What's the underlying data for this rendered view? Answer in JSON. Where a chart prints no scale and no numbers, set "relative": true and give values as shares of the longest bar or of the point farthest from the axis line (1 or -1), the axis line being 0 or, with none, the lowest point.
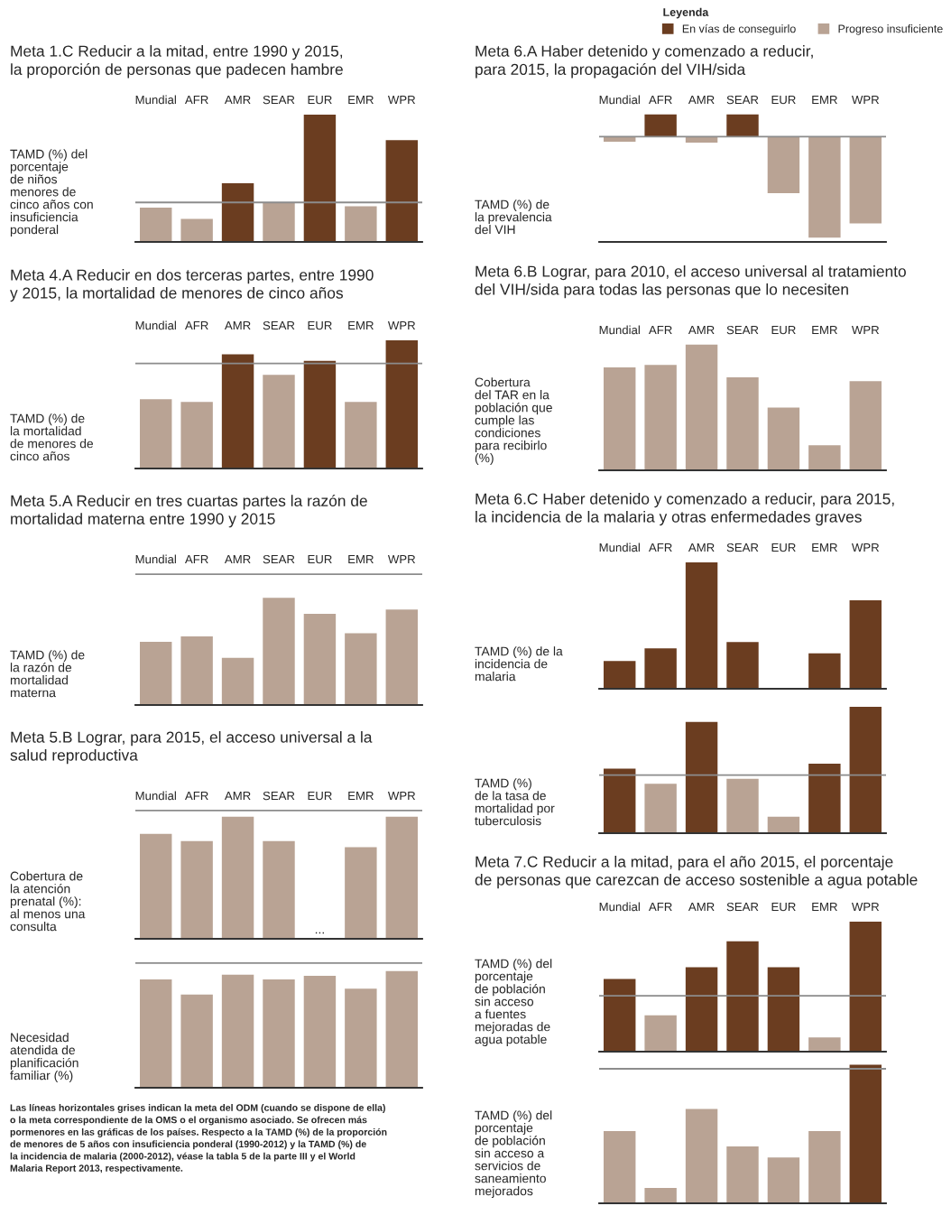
{
  "chart_data": [
    {
      "type": "bar",
      "relative": true,
      "title": "Meta 1.C Reducir a la mitad, entre 1990 y 2015,\nla proporción de personas que padecen hambre",
      "ylabel": "TAMD (%) del\nporcentaje\nde niños\nmenores de\ncinco años con\ninsuficiencia\nponderal",
      "categories": [
        "Mundial",
        "AFR",
        "AMR",
        "SEAR",
        "EUR",
        "EMR",
        "WPR"
      ],
      "series": [
        {
          "color": "#6b3d20",
          "values": [
            null,
            null,
            0.46,
            null,
            1,
            null,
            0.8
          ]
        },
        {
          "color": "#b9a394",
          "values": [
            0.27,
            0.18,
            null,
            0.31,
            null,
            0.28,
            null
          ]
        }
      ],
      "ref_lines": [
        {
          "axis": "y",
          "value": 0.31,
          "color": "#8c8c8c"
        }
      ]
    },
    {
      "type": "bar",
      "relative": true,
      "title": "Meta 4.A Reducir en dos terceras partes, entre 1990\ny 2015, la mortalidad de menores de cinco años",
      "ylabel": "TAMD (%) de\nla mortalidad\nde menores de\ncinco años",
      "categories": [
        "Mundial",
        "AFR",
        "AMR",
        "SEAR",
        "EUR",
        "EMR",
        "WPR"
      ],
      "series": [
        {
          "color": "#6b3d20",
          "values": [
            null,
            null,
            0.89,
            null,
            0.84,
            null,
            1
          ]
        },
        {
          "color": "#b9a394",
          "values": [
            0.54,
            0.52,
            null,
            0.73,
            null,
            0.52,
            null
          ]
        }
      ],
      "ref_lines": [
        {
          "axis": "y",
          "value": 0.82,
          "color": "#8c8c8c"
        }
      ]
    },
    {
      "type": "bar",
      "relative": true,
      "title": "Meta 5.A Reducir en tres cuartas partes la razón de\nmortalidad materna entre 1990 y 2015",
      "ylabel": "TAMD (%) de\nla razón de\nmortalidad\nmaterna",
      "categories": [
        "Mundial",
        "AFR",
        "AMR",
        "SEAR",
        "EUR",
        "EMR",
        "WPR"
      ],
      "series": [
        {
          "color": "#b9a394",
          "values": [
            0.59,
            0.64,
            0.44,
            1,
            0.85,
            0.67,
            0.89
          ]
        }
      ],
      "ref_lines": [
        {
          "axis": "y",
          "value": 1.22,
          "color": "#8c8c8c"
        }
      ]
    },
    {
      "type": "bar",
      "relative": true,
      "title": "Meta 5.B Lograr, para 2015, el acceso universal a la\nsalud reproductiva",
      "ylabel": "Cobertura de\nla atención\nprenatal (%):\nal menos una\nconsulta",
      "categories": [
        "Mundial",
        "AFR",
        "AMR",
        "SEAR",
        "EUR",
        "EMR",
        "WPR"
      ],
      "series": [
        {
          "color": "#b9a394",
          "values": [
            0.86,
            0.8,
            1,
            0.8,
            null,
            0.75,
            1
          ]
        }
      ],
      "ref_lines": [
        {
          "axis": "y",
          "value": 1.05,
          "color": "#8c8c8c"
        }
      ],
      "annotations": [
        "..."
      ]
    },
    {
      "type": "bar",
      "relative": true,
      "ylabel": "Necesidad\natendida de\nplanificación\nfamiliar (%)",
      "categories": [
        null,
        null,
        null,
        null,
        null,
        null,
        null
      ],
      "series": [
        {
          "color": "#b9a394",
          "values": [
            0.93,
            0.8,
            0.97,
            0.93,
            0.96,
            0.85,
            1
          ]
        }
      ],
      "ref_lines": [
        {
          "axis": "y",
          "value": 1.07,
          "color": "#8c8c8c"
        }
      ],
      "annotations": [
        "Las líneas horizontales grises indican la meta del ODM (cuando se dispone de ella)\no la meta correspondiente de la OMS o el organismo asociado. Se ofrecen más\npormenores en las gráficas de los países. Respecto a la TAMD (%) de la proporción\nde menores de 5 años con insuficiencia ponderal (1990-2012) y la TAMD (%) de\nla incidencia de malaria (2000-2012), véase la tabla 5 de la parte III y el World\nMalaria Report 2013, respectivamente."
      ]
    },
    {
      "type": "bar",
      "relative": true,
      "title": "Meta 6.A Haber detenido y comenzado a reducir,\npara 2015, la propagación del VIH/sida",
      "ylabel": "TAMD (%) de\nla prevalencia\ndel VIH",
      "categories": [
        "Mundial",
        "AFR",
        "AMR",
        "SEAR",
        "EUR",
        "EMR",
        "WPR"
      ],
      "legend": "top right",
      "legend_title": "Leyenda",
      "series": [
        {
          "name": "En vías de conseguirlo",
          "color": "#6b3d20",
          "values": [
            null,
            0.22,
            null,
            0.22,
            null,
            null,
            null
          ]
        },
        {
          "name": "Progreso insuficiente",
          "color": "#b9a394",
          "values": [
            -0.05,
            null,
            -0.06,
            null,
            -0.56,
            -1,
            -0.86
          ]
        }
      ],
      "ref_lines": [
        {
          "axis": "y",
          "value": 0,
          "color": "#8c8c8c"
        }
      ]
    },
    {
      "type": "bar",
      "relative": true,
      "title": "Meta 6.B Lograr, para 2010, el acceso universal al tratamiento\ndel VIH/sida para todas las personas que lo necesiten",
      "ylabel": "Cobertura\ndel TAR en la\npoblación que\ncumple las\ncondiciones\npara recibirlo\n(%)",
      "categories": [
        "Mundial",
        "AFR",
        "AMR",
        "SEAR",
        "EUR",
        "EMR",
        "WPR"
      ],
      "series": [
        {
          "color": "#b9a394",
          "values": [
            0.82,
            0.84,
            1,
            0.74,
            0.5,
            0.2,
            0.71
          ]
        }
      ]
    },
    {
      "type": "bar",
      "relative": true,
      "title": "Meta 6.C Haber detenido y comenzado a reducir, para 2015,\nla incidencia de la malaria y otras enfermedades graves",
      "ylabel": "TAMD (%) de la\nincidencia de\nmalaria",
      "categories": [
        "Mundial",
        "AFR",
        "AMR",
        "SEAR",
        "EUR",
        "EMR",
        "WPR"
      ],
      "series": [
        {
          "color": "#6b3d20",
          "values": [
            0.22,
            0.32,
            1,
            0.37,
            null,
            0.28,
            0.7
          ]
        }
      ]
    },
    {
      "type": "bar",
      "relative": true,
      "ylabel": "TAMD (%)\nde la tasa de\nmortalidad por\ntuberculosis",
      "categories": [
        null,
        null,
        null,
        null,
        null,
        null,
        null
      ],
      "values": [
        0.51,
        0.39,
        0.88,
        0.43,
        0.13,
        0.55,
        1
      ],
      "colors": [
        "#6b3d20",
        "#b9a394",
        "#6b3d20",
        "#b9a394",
        "#b9a394",
        "#6b3d20",
        "#6b3d20"
      ],
      "ref_lines": [
        {
          "axis": "y",
          "value": 0.46,
          "color": "#8c8c8c"
        }
      ]
    },
    {
      "type": "bar",
      "relative": true,
      "title": "Meta 7.C Reducir a la mitad, para el año 2015, el porcentaje\nde personas que carezcan de acceso sostenible a agua potable",
      "ylabel": "TAMD (%) del\nporcentaje\nde población\nsin acceso\na fuentes\nmejoradas de\nagua potable",
      "categories": [
        "Mundial",
        "AFR",
        "AMR",
        "SEAR",
        "EUR",
        "EMR",
        "WPR"
      ],
      "series": [
        {
          "color": "#6b3d20",
          "values": [
            0.56,
            null,
            0.65,
            0.85,
            0.65,
            null,
            1
          ]
        },
        {
          "color": "#b9a394",
          "values": [
            null,
            0.28,
            null,
            null,
            null,
            0.11,
            null
          ]
        }
      ],
      "ref_lines": [
        {
          "axis": "y",
          "value": 0.43,
          "color": "#8c8c8c"
        }
      ]
    },
    {
      "type": "bar",
      "relative": true,
      "ylabel": "TAMD (%) del\nporcentaje\nde población\nsin acceso a\nservicios de\nsaneamiento\nmejorados",
      "categories": [
        null,
        null,
        null,
        null,
        null,
        null,
        null
      ],
      "values": [
        0.52,
        0.11,
        0.68,
        0.41,
        0.33,
        0.52,
        1
      ],
      "colors": [
        "#b9a394",
        "#b9a394",
        "#b9a394",
        "#b9a394",
        "#b9a394",
        "#b9a394",
        "#6b3d20"
      ],
      "ref_lines": [
        {
          "axis": "y",
          "value": 0.97,
          "color": "#8c8c8c"
        }
      ]
    }
  ]
}
